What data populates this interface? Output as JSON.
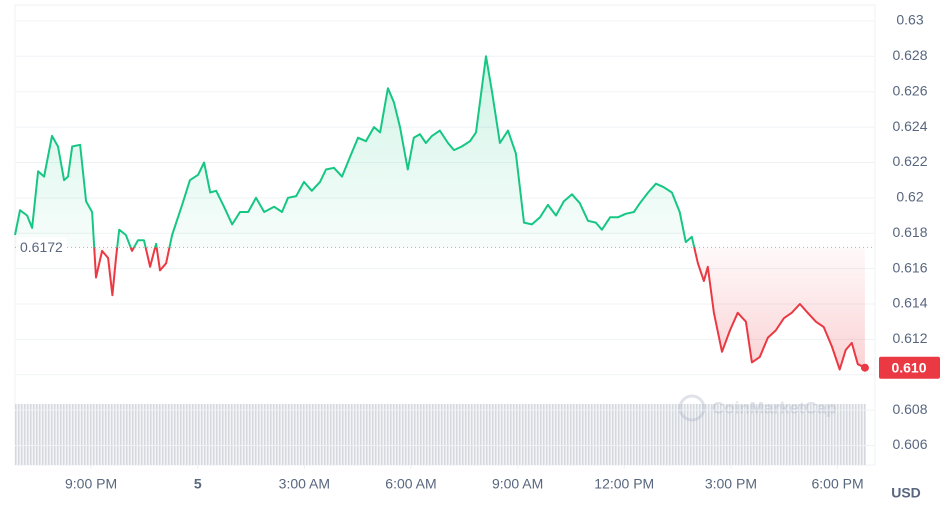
{
  "chart_data": {
    "type": "line",
    "x": [
      18.86,
      19.0,
      19.2,
      19.34,
      19.51,
      19.68,
      19.9,
      20.07,
      20.24,
      20.35,
      20.47,
      20.69,
      20.86,
      21.03,
      21.14,
      21.31,
      21.48,
      21.6,
      21.7,
      21.79,
      21.98,
      22.15,
      22.32,
      22.49,
      22.66,
      22.83,
      22.94,
      23.11,
      23.28,
      23.56,
      23.78,
      24.01,
      24.18,
      24.35,
      24.52,
      24.74,
      24.97,
      25.19,
      25.42,
      25.64,
      25.87,
      26.15,
      26.37,
      26.54,
      26.77,
      26.99,
      27.21,
      27.44,
      27.61,
      27.83,
      28.06,
      28.28,
      28.51,
      28.73,
      28.96,
      29.13,
      29.35,
      29.52,
      29.69,
      29.91,
      30.08,
      30.25,
      30.42,
      30.59,
      30.81,
      31.04,
      31.21,
      31.43,
      31.66,
      31.83,
      32.11,
      32.28,
      32.5,
      32.73,
      32.95,
      33.18,
      33.4,
      33.63,
      33.85,
      34.08,
      34.3,
      34.53,
      34.75,
      34.98,
      35.2,
      35.37,
      35.6,
      35.82,
      36.04,
      36.27,
      36.44,
      36.67,
      36.89,
      37.11,
      37.34,
      37.56,
      37.73,
      37.9,
      38.07,
      38.24,
      38.35,
      38.52,
      38.75,
      38.97,
      39.19,
      39.42,
      39.59,
      39.81,
      40.04,
      40.26,
      40.49,
      40.71,
      40.94,
      41.16,
      41.39,
      41.61,
      41.84,
      42.06,
      42.23,
      42.4,
      42.57,
      42.77
    ],
    "values": [
      0.6179,
      0.6193,
      0.619,
      0.6183,
      0.6215,
      0.6212,
      0.6235,
      0.6229,
      0.621,
      0.6212,
      0.6229,
      0.623,
      0.6198,
      0.6192,
      0.6155,
      0.617,
      0.6166,
      0.6145,
      0.6166,
      0.6182,
      0.6179,
      0.617,
      0.6176,
      0.6176,
      0.6161,
      0.6174,
      0.6159,
      0.6163,
      0.6179,
      0.6196,
      0.621,
      0.6213,
      0.622,
      0.6203,
      0.6204,
      0.6195,
      0.6185,
      0.6192,
      0.6192,
      0.62,
      0.6192,
      0.6195,
      0.6192,
      0.62,
      0.6201,
      0.6209,
      0.6204,
      0.6209,
      0.6216,
      0.6217,
      0.6212,
      0.6223,
      0.6234,
      0.6232,
      0.624,
      0.6237,
      0.6262,
      0.6254,
      0.624,
      0.6216,
      0.6234,
      0.6236,
      0.6231,
      0.6235,
      0.6238,
      0.6231,
      0.6227,
      0.6229,
      0.6232,
      0.6237,
      0.628,
      0.626,
      0.6231,
      0.6238,
      0.6225,
      0.6186,
      0.6185,
      0.6189,
      0.6196,
      0.619,
      0.6198,
      0.6202,
      0.6197,
      0.6187,
      0.6186,
      0.6182,
      0.6189,
      0.6189,
      0.6191,
      0.6192,
      0.6197,
      0.6203,
      0.6208,
      0.6206,
      0.6203,
      0.6192,
      0.6175,
      0.6178,
      0.6163,
      0.6153,
      0.6161,
      0.6135,
      0.6113,
      0.6125,
      0.6135,
      0.613,
      0.6107,
      0.611,
      0.6121,
      0.6125,
      0.6132,
      0.6135,
      0.614,
      0.6135,
      0.613,
      0.6127,
      0.6116,
      0.6103,
      0.6114,
      0.6118,
      0.6106,
      0.6104
    ],
    "up_color": "#16c784",
    "down_color": "#ea3943",
    "baseline": {
      "value": 0.6172,
      "label": "0.6172"
    },
    "last_value_label": "0.610",
    "xlim": [
      18.86,
      42.8
    ],
    "xticks": [
      {
        "value": 21,
        "label": "9:00 PM"
      },
      {
        "value": 24,
        "label": "5"
      },
      {
        "value": 27,
        "label": "3:00 AM"
      },
      {
        "value": 30,
        "label": "6:00 AM"
      },
      {
        "value": 33,
        "label": "9:00 AM"
      },
      {
        "value": 36,
        "label": "12:00 PM"
      },
      {
        "value": 39,
        "label": "3:00 PM"
      },
      {
        "value": 42,
        "label": "6:00 PM"
      }
    ],
    "ylim": [
      0.6049,
      0.6309
    ],
    "yticks": [
      0.606,
      0.608,
      0.61,
      0.612,
      0.614,
      0.616,
      0.618,
      0.62,
      0.622,
      0.624,
      0.626,
      0.628,
      0.63
    ],
    "grid": true,
    "currency": "USD",
    "watermark": "CoinMarketCap"
  }
}
